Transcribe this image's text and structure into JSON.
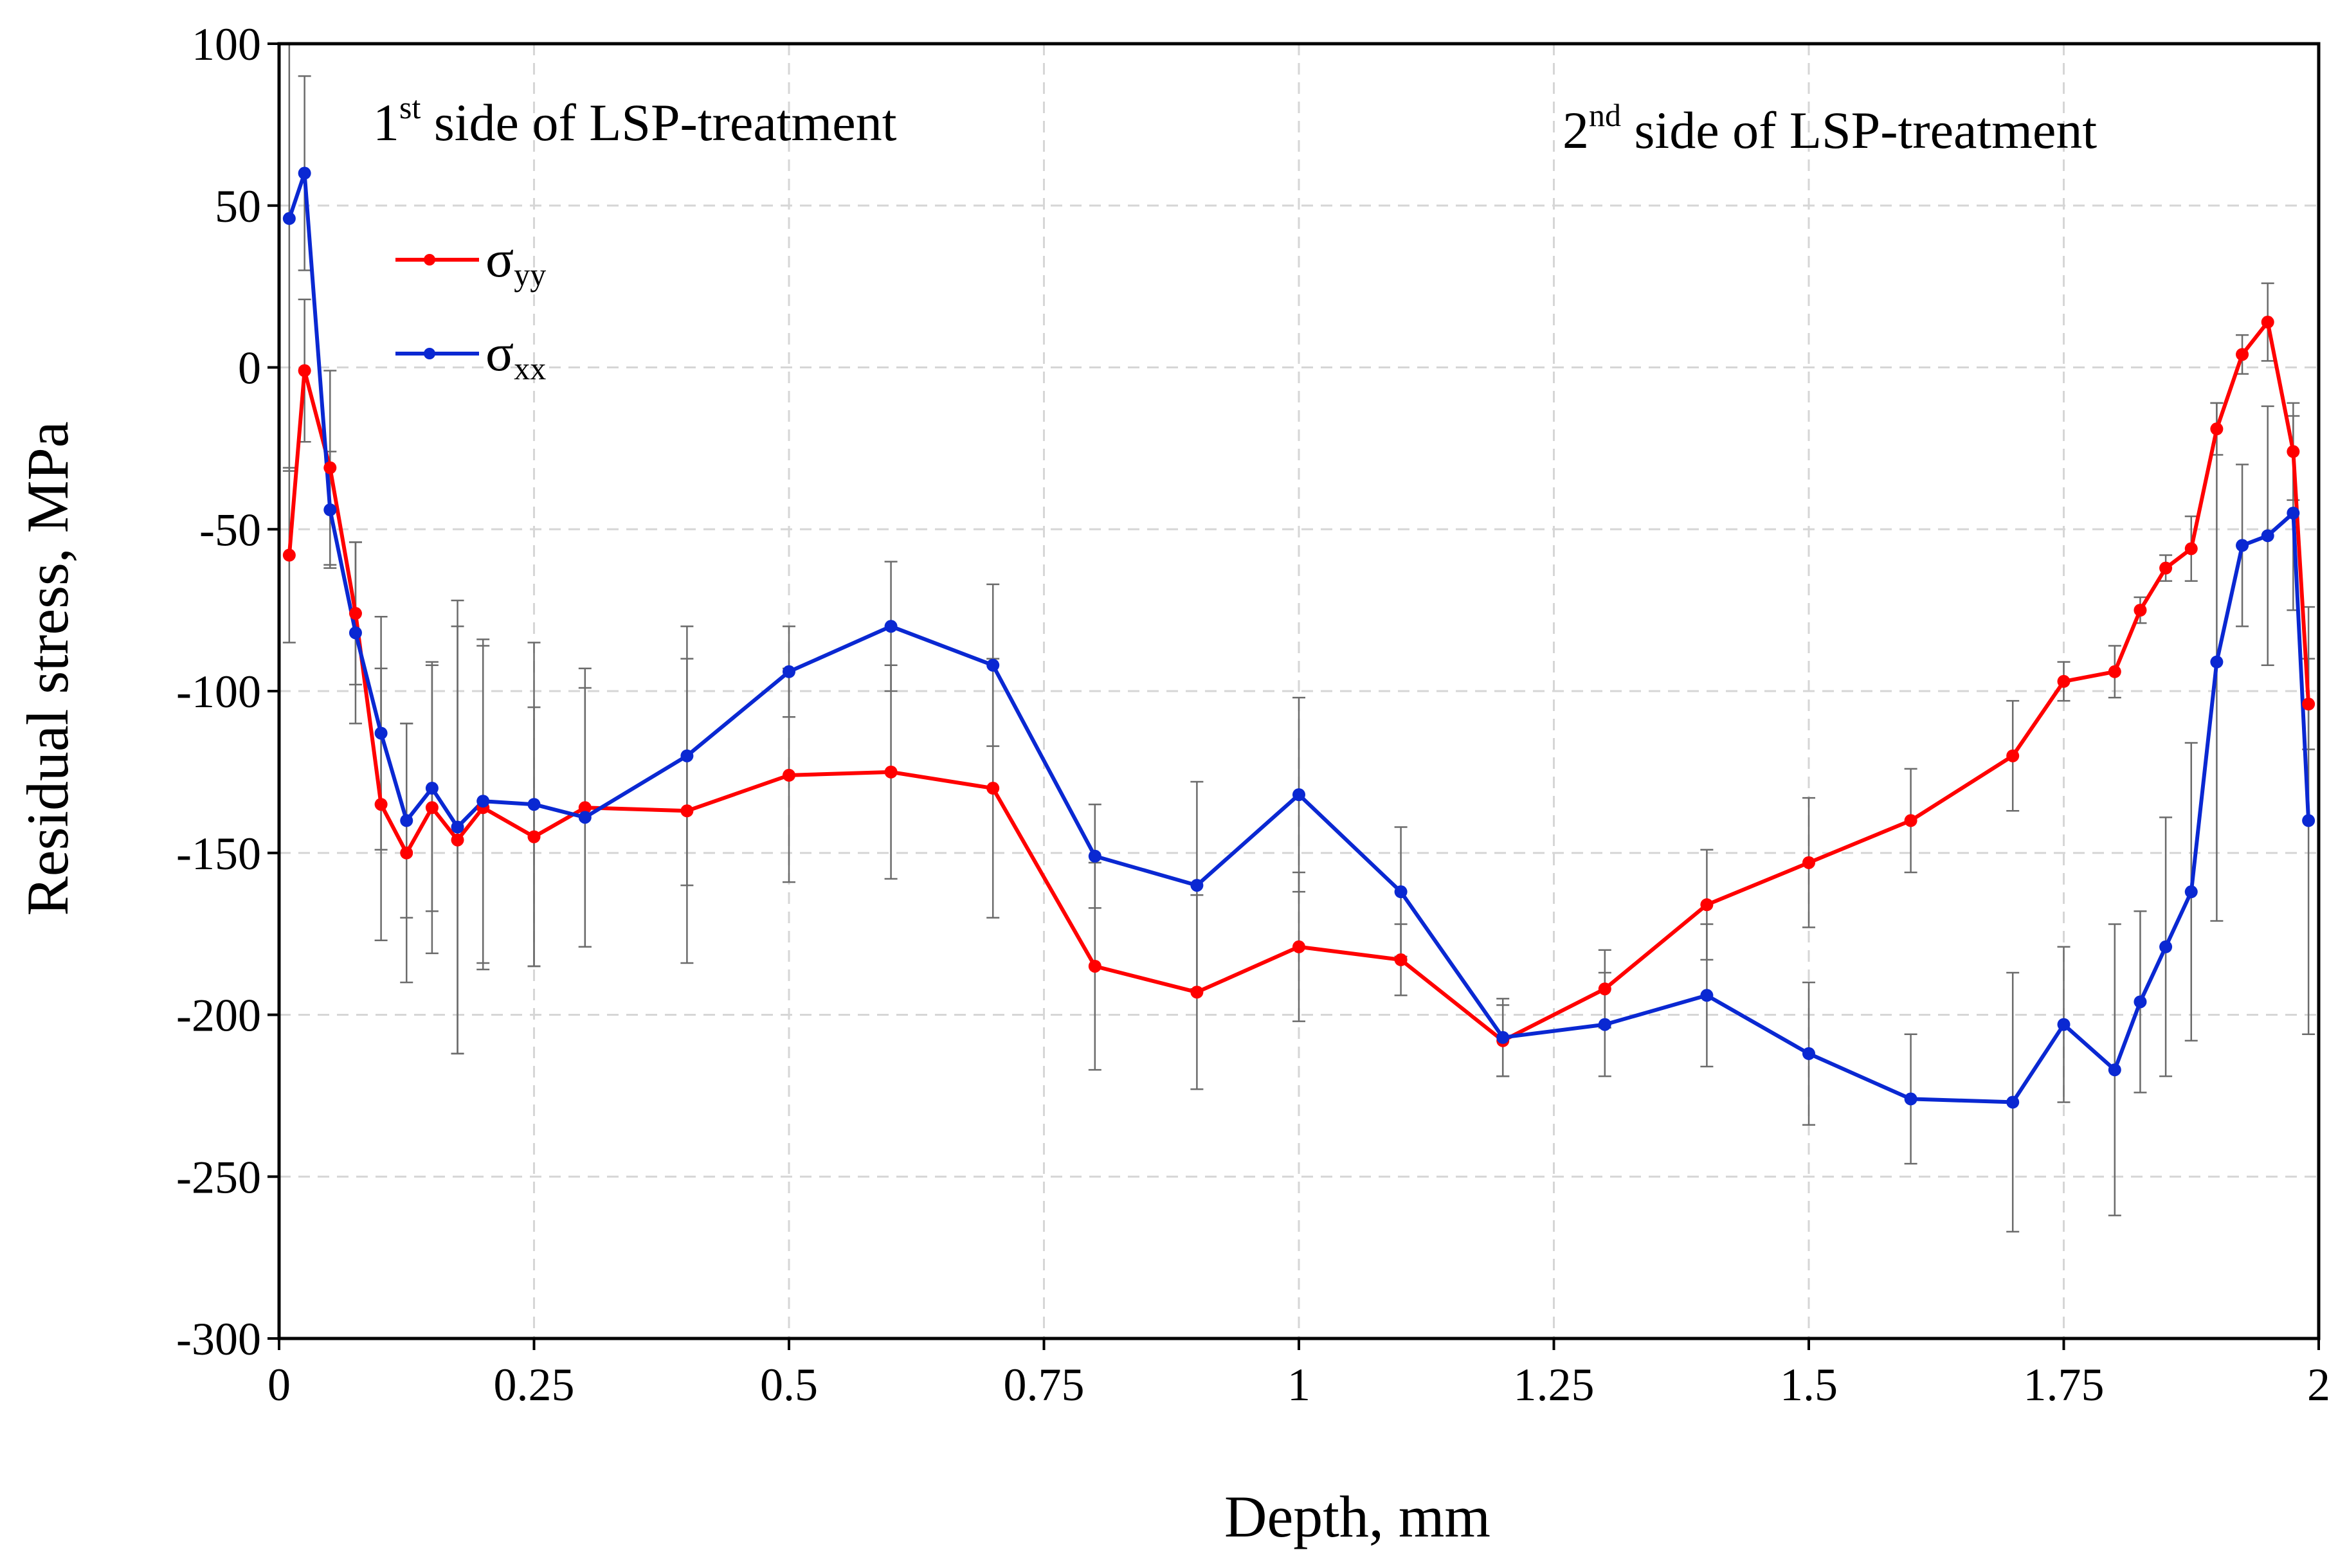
{
  "chart_data": {
    "type": "line",
    "xlabel": "Depth, mm",
    "ylabel": "Residual stress, MPa",
    "xlim": [
      0,
      2
    ],
    "ylim": [
      -300,
      100
    ],
    "x_ticks": [
      0,
      0.25,
      0.5,
      0.75,
      1,
      1.25,
      1.5,
      1.75,
      2
    ],
    "x_tick_labels": [
      "0",
      "0.25",
      "0.5",
      "0.75",
      "1",
      "1.25",
      "1.5",
      "1.75",
      "2"
    ],
    "y_ticks": [
      100,
      50,
      0,
      -50,
      -100,
      -150,
      -200,
      -250,
      -300
    ],
    "y_tick_labels": [
      "100",
      "50",
      "0",
      "-50",
      "-100",
      "-150",
      "-200",
      "-250",
      "-300"
    ],
    "grid": true,
    "legend_position": "upper-left",
    "annotations": [
      {
        "prefix": "1",
        "sup": "st",
        "text": " side of LSP-treatment",
        "position": "top-left"
      },
      {
        "prefix": "2",
        "sup": "nd",
        "text": " side of LSP-treatment",
        "position": "top-right"
      }
    ],
    "series": [
      {
        "name": "σyy",
        "legend_symbol": "σ",
        "legend_subscript": "yy",
        "color": "#ff0000",
        "points": [
          {
            "x": 0.01,
            "y": -58,
            "err": 27
          },
          {
            "x": 0.025,
            "y": -1,
            "err": 22
          },
          {
            "x": 0.05,
            "y": -31,
            "err": 30
          },
          {
            "x": 0.075,
            "y": -76,
            "err": 22
          },
          {
            "x": 0.1,
            "y": -135,
            "err": 42
          },
          {
            "x": 0.125,
            "y": -150,
            "err": 40
          },
          {
            "x": 0.15,
            "y": -136,
            "err": 45
          },
          {
            "x": 0.175,
            "y": -146,
            "err": 66
          },
          {
            "x": 0.2,
            "y": -136,
            "err": 50
          },
          {
            "x": 0.25,
            "y": -145,
            "err": 40
          },
          {
            "x": 0.3,
            "y": -136,
            "err": 43
          },
          {
            "x": 0.4,
            "y": -137,
            "err": 47
          },
          {
            "x": 0.5,
            "y": -126,
            "err": 33
          },
          {
            "x": 0.6,
            "y": -125,
            "err": 33
          },
          {
            "x": 0.7,
            "y": -130,
            "err": 40
          },
          {
            "x": 0.8,
            "y": -185,
            "err": 32
          },
          {
            "x": 0.9,
            "y": -193,
            "err": 30
          },
          {
            "x": 1.0,
            "y": -179,
            "err": 23
          },
          {
            "x": 1.1,
            "y": -183,
            "err": 11
          },
          {
            "x": 1.2,
            "y": -208,
            "err": 11
          },
          {
            "x": 1.3,
            "y": -192,
            "err": 12
          },
          {
            "x": 1.4,
            "y": -166,
            "err": 17
          },
          {
            "x": 1.5,
            "y": -153,
            "err": 20
          },
          {
            "x": 1.6,
            "y": -140,
            "err": 16
          },
          {
            "x": 1.7,
            "y": -120,
            "err": 17
          },
          {
            "x": 1.75,
            "y": -97,
            "err": 6
          },
          {
            "x": 1.8,
            "y": -94,
            "err": 8
          },
          {
            "x": 1.825,
            "y": -75,
            "err": 4
          },
          {
            "x": 1.85,
            "y": -62,
            "err": 4
          },
          {
            "x": 1.875,
            "y": -56,
            "err": 10
          },
          {
            "x": 1.9,
            "y": -19,
            "err": 8
          },
          {
            "x": 1.925,
            "y": 4,
            "err": 6
          },
          {
            "x": 1.95,
            "y": 14,
            "err": 12
          },
          {
            "x": 1.975,
            "y": -26,
            "err": 15
          },
          {
            "x": 1.99,
            "y": -104,
            "err": 14
          }
        ]
      },
      {
        "name": "σxx",
        "legend_symbol": "σ",
        "legend_subscript": "xx",
        "color": "#0a28d2",
        "points": [
          {
            "x": 0.01,
            "y": 46,
            "err": 78
          },
          {
            "x": 0.025,
            "y": 60,
            "err": 30
          },
          {
            "x": 0.05,
            "y": -44,
            "err": 18
          },
          {
            "x": 0.075,
            "y": -82,
            "err": 28
          },
          {
            "x": 0.1,
            "y": -113,
            "err": 36
          },
          {
            "x": 0.125,
            "y": -140,
            "err": 30
          },
          {
            "x": 0.15,
            "y": -130,
            "err": 38
          },
          {
            "x": 0.175,
            "y": -142,
            "err": 70
          },
          {
            "x": 0.2,
            "y": -134,
            "err": 50
          },
          {
            "x": 0.25,
            "y": -135,
            "err": 50
          },
          {
            "x": 0.3,
            "y": -139,
            "err": 40
          },
          {
            "x": 0.4,
            "y": -120,
            "err": 40
          },
          {
            "x": 0.5,
            "y": -94,
            "err": 14
          },
          {
            "x": 0.6,
            "y": -80,
            "err": 20
          },
          {
            "x": 0.7,
            "y": -92,
            "err": 25
          },
          {
            "x": 0.8,
            "y": -151,
            "err": 16
          },
          {
            "x": 0.9,
            "y": -160,
            "err": 32
          },
          {
            "x": 1.0,
            "y": -132,
            "err": 30
          },
          {
            "x": 1.1,
            "y": -162,
            "err": 20
          },
          {
            "x": 1.2,
            "y": -207,
            "err": 12
          },
          {
            "x": 1.3,
            "y": -203,
            "err": 16
          },
          {
            "x": 1.4,
            "y": -194,
            "err": 22
          },
          {
            "x": 1.5,
            "y": -212,
            "err": 22
          },
          {
            "x": 1.6,
            "y": -226,
            "err": 20
          },
          {
            "x": 1.7,
            "y": -227,
            "err": 40
          },
          {
            "x": 1.75,
            "y": -203,
            "err": 24
          },
          {
            "x": 1.8,
            "y": -217,
            "err": 45
          },
          {
            "x": 1.825,
            "y": -196,
            "err": 28
          },
          {
            "x": 1.85,
            "y": -179,
            "err": 40
          },
          {
            "x": 1.875,
            "y": -162,
            "err": 46
          },
          {
            "x": 1.9,
            "y": -91,
            "err": 80
          },
          {
            "x": 1.925,
            "y": -55,
            "err": 25
          },
          {
            "x": 1.95,
            "y": -52,
            "err": 40
          },
          {
            "x": 1.975,
            "y": -45,
            "err": 30
          },
          {
            "x": 1.99,
            "y": -140,
            "err": 66
          }
        ]
      }
    ]
  }
}
